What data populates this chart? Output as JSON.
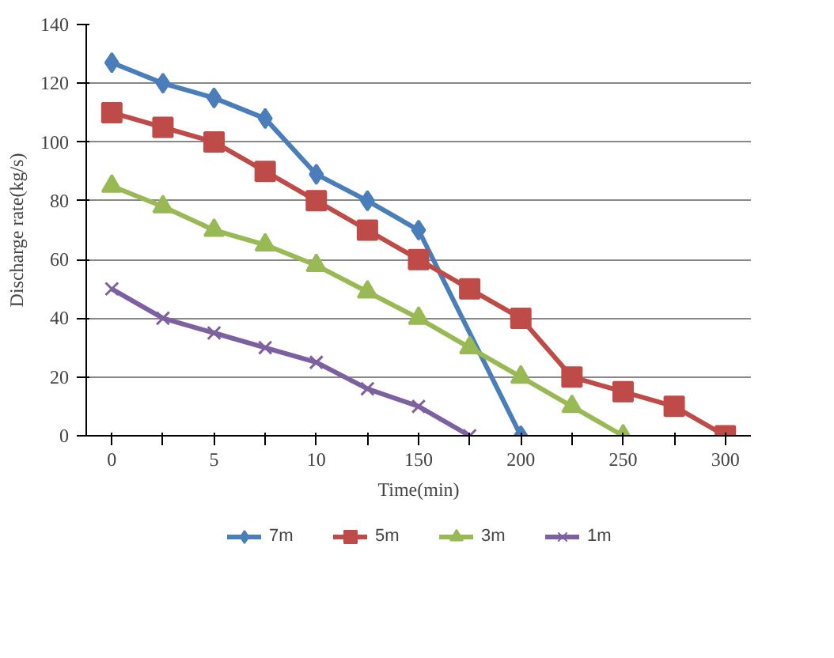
{
  "chart_data": {
    "type": "line",
    "xlabel": "Time(min)",
    "ylabel": "Discharge rate(kg/s)",
    "categories": [
      "0",
      null,
      "5",
      null,
      "10",
      null,
      "150",
      null,
      "200",
      null,
      "250",
      null,
      "300"
    ],
    "series": [
      {
        "name": "7m",
        "color": "#4a7ebb",
        "marker": "diamond",
        "values": [
          127,
          120,
          115,
          108,
          89,
          80,
          70,
          null,
          0,
          null,
          null,
          null,
          null
        ]
      },
      {
        "name": "5m",
        "color": "#be4b48",
        "marker": "square",
        "values": [
          110,
          105,
          100,
          90,
          80,
          70,
          60,
          50,
          40,
          20,
          15,
          10,
          0
        ]
      },
      {
        "name": "3m",
        "color": "#98b954",
        "marker": "triangle",
        "values": [
          85,
          78,
          70,
          65,
          58,
          49,
          40,
          30,
          20,
          10,
          0,
          null,
          null
        ]
      },
      {
        "name": "1m",
        "color": "#7d60a0",
        "marker": "x",
        "values": [
          50,
          40,
          35,
          30,
          25,
          16,
          10,
          0,
          null,
          null,
          null,
          null,
          null
        ]
      }
    ],
    "ylim": [
      0,
      140
    ],
    "yticks": [
      0,
      20,
      40,
      60,
      80,
      100,
      120,
      140
    ],
    "grid": "y",
    "legend": "bottom"
  }
}
